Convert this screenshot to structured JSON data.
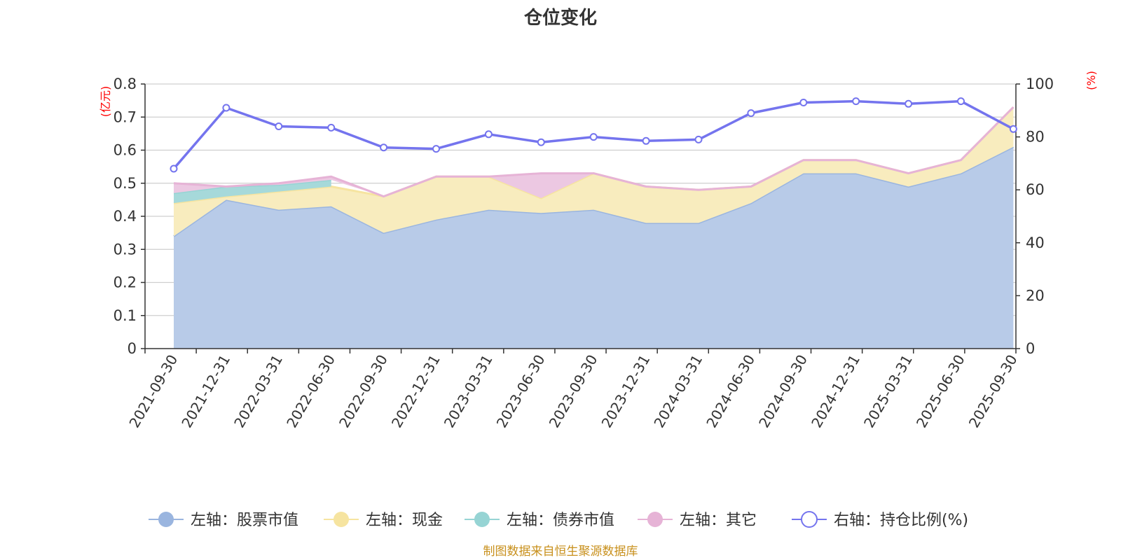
{
  "chart_data": {
    "type": "area",
    "title": "仓位变化",
    "left_axis": {
      "unit": "(亿元)",
      "range": [
        0,
        0.8
      ],
      "ticks": [
        "0",
        "0.1",
        "0.2",
        "0.3",
        "0.4",
        "0.5",
        "0.6",
        "0.7",
        "0.8"
      ],
      "tick_values": [
        0,
        0.1,
        0.2,
        0.3,
        0.4,
        0.5,
        0.6,
        0.7,
        0.8
      ]
    },
    "right_axis": {
      "unit": "(%)",
      "range": [
        0,
        100
      ],
      "ticks": [
        "0",
        "20",
        "40",
        "60",
        "80",
        "100"
      ],
      "tick_values": [
        0,
        20,
        40,
        60,
        80,
        100
      ]
    },
    "grid": true,
    "legend_position": "bottom",
    "categories": [
      "2021-09-30",
      "2021-12-31",
      "2022-03-31",
      "2022-06-30",
      "2022-09-30",
      "2022-12-31",
      "2023-03-31",
      "2023-06-30",
      "2023-09-30",
      "2023-12-31",
      "2024-03-31",
      "2024-06-30",
      "2024-09-30",
      "2024-12-31",
      "2025-03-31",
      "2025-06-30",
      "2025-09-30"
    ],
    "series": [
      {
        "name": "左轴：股票市值",
        "axis": "left",
        "type": "stacked-area",
        "color": "#9ab5df",
        "fill": "#b8cbe8",
        "values": [
          0.34,
          0.45,
          0.42,
          0.43,
          0.35,
          0.39,
          0.42,
          0.41,
          0.42,
          0.38,
          0.38,
          0.44,
          0.53,
          0.53,
          0.49,
          0.53,
          0.61
        ]
      },
      {
        "name": "左轴：现金",
        "axis": "left",
        "type": "stacked-area",
        "color": "#f6e4a0",
        "fill": "#f8ecbe",
        "values": [
          0.1,
          0.01,
          0.055,
          0.06,
          0.11,
          0.13,
          0.1,
          0.045,
          0.11,
          0.11,
          0.1,
          0.05,
          0.04,
          0.04,
          0.04,
          0.04,
          0.12
        ]
      },
      {
        "name": "左轴：债券市值",
        "axis": "left",
        "type": "stacked-area",
        "color": "#96d4d4",
        "fill": "#a6d9da",
        "values": [
          0.03,
          0.03,
          0.02,
          0.02,
          null,
          null,
          null,
          null,
          null,
          null,
          null,
          null,
          null,
          null,
          null,
          null,
          null
        ]
      },
      {
        "name": "左轴：其它",
        "axis": "left",
        "type": "stacked-area",
        "color": "#e6b3d6",
        "fill": "#ecc8e2",
        "values": [
          0.03,
          0.0,
          0.005,
          0.01,
          0.0,
          0.0,
          0.0,
          0.075,
          0.0,
          0.0,
          0.0,
          0.0,
          0.0,
          0.0,
          0.0,
          0.0,
          0.0
        ]
      },
      {
        "name": "右轴：持仓比例(%)",
        "axis": "right",
        "type": "line",
        "color": "#7474ee",
        "values": [
          68,
          91,
          84,
          83.5,
          76,
          75.5,
          81,
          78,
          80,
          78.5,
          79,
          89,
          93,
          93.5,
          92.5,
          93.5,
          83
        ]
      }
    ]
  },
  "footer": {
    "source": "制图数据来自恒生聚源数据库"
  }
}
